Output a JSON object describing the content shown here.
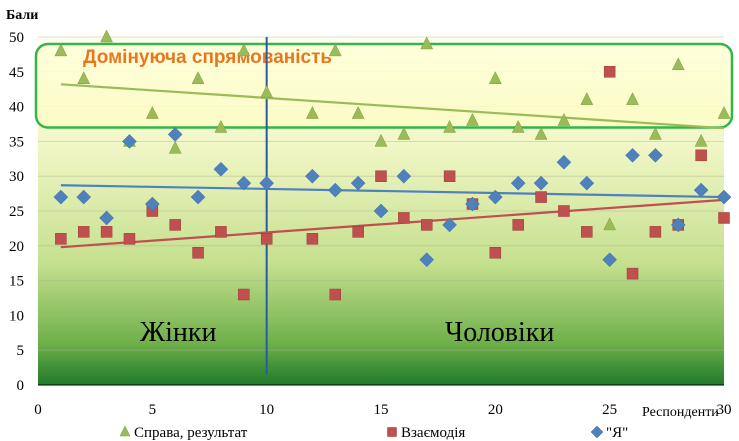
{
  "chart_data": {
    "type": "scatter",
    "ylabel": "Бали",
    "xlabel": "Респонденти",
    "xlim": [
      0,
      30
    ],
    "ylim": [
      0,
      50
    ],
    "x_ticks": [
      "0",
      "5",
      "10",
      "15",
      "20",
      "25",
      "30"
    ],
    "y_ticks": [
      "0",
      "5",
      "10",
      "15",
      "20",
      "25",
      "30",
      "35",
      "40",
      "45",
      "50"
    ],
    "divider_x": 10,
    "region_labels": {
      "left": "Жінки",
      "right": "Чоловіки"
    },
    "highlight_band": {
      "label": "Домінуюча спрямованість",
      "y_from": 37,
      "y_to": 49
    },
    "legend_position": "bottom",
    "series": [
      {
        "name": "Справа, результат",
        "marker": "triangle",
        "color": "#9bbb59",
        "x": [
          1,
          2,
          3,
          4,
          5,
          6,
          7,
          8,
          9,
          10,
          12,
          13,
          14,
          15,
          16,
          17,
          18,
          19,
          20,
          21,
          22,
          23,
          24,
          25,
          26,
          27,
          28,
          29,
          30
        ],
        "y": [
          48,
          44,
          50,
          35,
          39,
          34,
          44,
          37,
          48,
          42,
          39,
          48,
          39,
          35,
          36,
          49,
          37,
          38,
          44,
          37,
          36,
          38,
          41,
          23,
          41,
          36,
          46,
          35,
          39
        ],
        "trend": [
          43.2,
          36.9
        ]
      },
      {
        "name": "Взаємодія",
        "marker": "square",
        "color": "#c0504d",
        "x": [
          1,
          2,
          3,
          4,
          5,
          6,
          7,
          8,
          9,
          10,
          12,
          13,
          14,
          15,
          16,
          17,
          18,
          19,
          20,
          21,
          22,
          23,
          24,
          25,
          26,
          27,
          28,
          29,
          30
        ],
        "y": [
          21,
          22,
          22,
          21,
          25,
          23,
          19,
          22,
          13,
          21,
          21,
          13,
          22,
          30,
          24,
          23,
          30,
          26,
          19,
          23,
          27,
          25,
          22,
          45,
          16,
          22,
          23,
          33,
          24
        ],
        "trend": [
          19.8,
          26.6
        ]
      },
      {
        "name": "\"Я\"",
        "marker": "diamond",
        "color": "#4f81bd",
        "x": [
          1,
          2,
          3,
          4,
          5,
          6,
          7,
          8,
          9,
          10,
          12,
          13,
          14,
          15,
          16,
          17,
          18,
          19,
          20,
          21,
          22,
          23,
          24,
          25,
          26,
          27,
          28,
          29,
          30
        ],
        "y": [
          27,
          27,
          24,
          35,
          26,
          36,
          27,
          31,
          29,
          29,
          30,
          28,
          29,
          25,
          30,
          18,
          23,
          26,
          27,
          29,
          29,
          32,
          29,
          18,
          33,
          33,
          23,
          28,
          27
        ],
        "trend": [
          28.7,
          27.0
        ]
      }
    ]
  }
}
